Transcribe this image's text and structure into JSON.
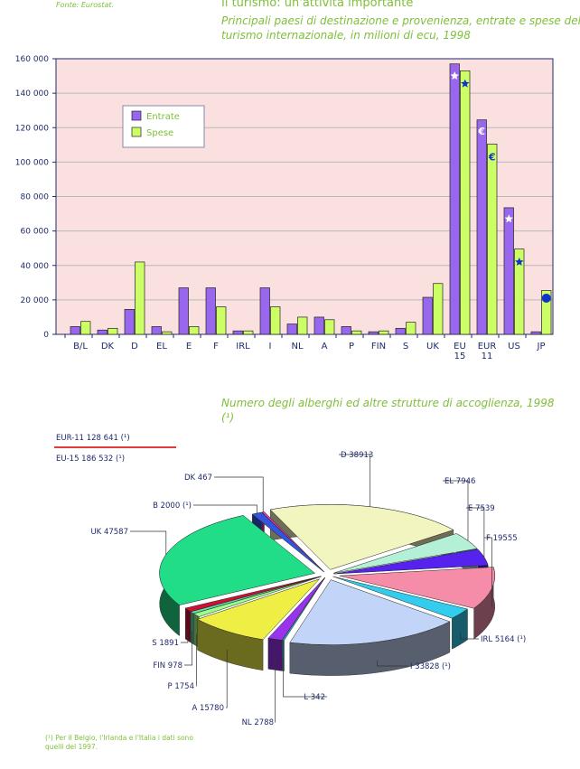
{
  "source": "Fonte: Eurostat.",
  "chart1": {
    "title": "Il turismo: un'attività importante",
    "subtitle": "Principali paesi di destinazione e provenienza, entrate e spese del turismo internazionale, in milioni di ecu, 1998"
  },
  "chart2": {
    "title": "Numero degli alberghi ed altre strutture di accoglienza, 1998 (¹)",
    "note_eur11": "EUR-11 128 641 (¹)",
    "note_eu15": "EU-15 186 532 (¹)",
    "footnote": "(¹) Per il Belgio, l'Irlanda e l'Italia i dati sono quelli del 1997."
  },
  "colors": {
    "entrate": "#9966ee",
    "spese": "#ccff66",
    "plot_bg": "#fbe0e0",
    "axis_text": "#1f2a6b",
    "title_green": "#7fbf3a",
    "rule_red": "#e23b3b"
  },
  "chart_data": [
    {
      "type": "bar",
      "categories": [
        "B/L",
        "DK",
        "D",
        "EL",
        "E",
        "F",
        "IRL",
        "I",
        "NL",
        "A",
        "P",
        "FIN",
        "S",
        "UK",
        "EU 15",
        "EUR 11",
        "US",
        "JP"
      ],
      "series": [
        {
          "name": "Entrate",
          "values": [
            4500,
            2500,
            14500,
            4500,
            27000,
            27000,
            2000,
            27000,
            6000,
            10000,
            4500,
            1500,
            3500,
            21500,
            157000,
            124500,
            73500,
            1500
          ]
        },
        {
          "name": "Spese",
          "values": [
            7500,
            3500,
            42000,
            1500,
            4500,
            16000,
            2000,
            16000,
            10000,
            8500,
            2000,
            2000,
            7000,
            29500,
            153000,
            110500,
            49500,
            25500
          ]
        }
      ],
      "yticks": [
        "0",
        "20 000",
        "40 000",
        "60 000",
        "80 000",
        "100 000",
        "120 000",
        "140 000",
        "160 000"
      ],
      "ylim": [
        0,
        160000
      ],
      "grid": true,
      "legend_position": "upper-left",
      "bar_symbols": [
        "EU-15 flag star on EU 15 bars",
        "euro sign on EUR 11 bars",
        "US star on US bars",
        "yen sign on JP bar"
      ]
    },
    {
      "type": "pie",
      "three_d": true,
      "labels": [
        "B 2000 (¹)",
        "DK 467",
        "D 38913",
        "EL 7946",
        "E 7539",
        "F 19555",
        "IRL 5164 (¹)",
        "I 33828 (¹)",
        "L 342",
        "NL 2788",
        "A 15780",
        "P 1754",
        "FIN 978",
        "S 1891",
        "UK 47587"
      ],
      "slices": [
        {
          "name": "B",
          "value": 2000,
          "color": "#3355dd"
        },
        {
          "name": "DK",
          "value": 467,
          "color": "#ee33aa"
        },
        {
          "name": "D",
          "value": 38913,
          "color": "#f2f5c0"
        },
        {
          "name": "EL",
          "value": 7946,
          "color": "#b3f0d6"
        },
        {
          "name": "E",
          "value": 7539,
          "color": "#5522ee"
        },
        {
          "name": "F",
          "value": 19555,
          "color": "#f58ca8"
        },
        {
          "name": "IRL",
          "value": 5164,
          "color": "#33ccee"
        },
        {
          "name": "I",
          "value": 33828,
          "color": "#c2d4f7"
        },
        {
          "name": "L",
          "value": 342,
          "color": "#22bbcc"
        },
        {
          "name": "NL",
          "value": 2788,
          "color": "#9933ee"
        },
        {
          "name": "A",
          "value": 15780,
          "color": "#eeee44"
        },
        {
          "name": "P",
          "value": 1754,
          "color": "#99ff88"
        },
        {
          "name": "FIN",
          "value": 978,
          "color": "#66ddaa"
        },
        {
          "name": "S",
          "value": 1891,
          "color": "#cc1133"
        },
        {
          "name": "UK",
          "value": 47587,
          "color": "#22dd88"
        }
      ]
    }
  ]
}
